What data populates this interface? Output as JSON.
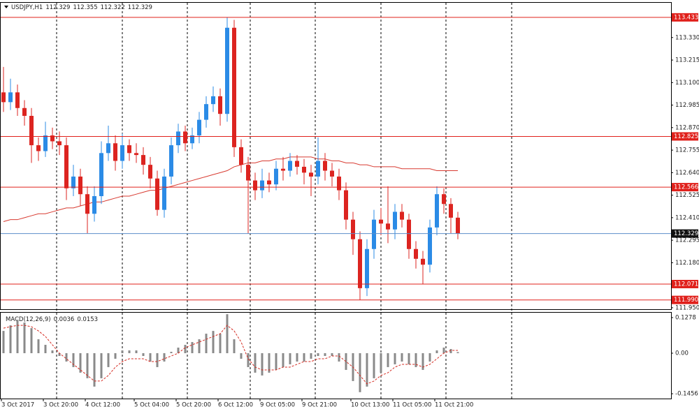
{
  "chart_data": [
    {
      "type": "candlestick",
      "title": "USDJPY,H1",
      "header_values": [
        112.329,
        112.355,
        112.322,
        112.329
      ],
      "categories": [
        "3 Oct 2017",
        null,
        null,
        null,
        null,
        null,
        "3 Oct 20:00",
        null,
        null,
        null,
        null,
        null,
        "4 Oct 12:00",
        null,
        null,
        null,
        null,
        null,
        null,
        "5 Oct 04:00",
        null,
        null,
        null,
        null,
        null,
        "5 Oct 20:00",
        null,
        null,
        null,
        null,
        null,
        "6 Oct 12:00",
        null,
        null,
        null,
        null,
        null,
        "9 Oct 05:00",
        null,
        null,
        null,
        null,
        null,
        "9 Oct 21:00",
        null,
        null,
        null,
        null,
        null,
        null,
        "10 Oct 13:00",
        null,
        null,
        null,
        null,
        null,
        "11 Oct 05:00",
        null,
        null,
        null,
        null,
        null,
        "11 Oct 21:00",
        null,
        null,
        null
      ],
      "open": [
        113.05,
        113.0,
        113.05,
        112.97,
        112.93,
        112.78,
        112.75,
        112.83,
        112.8,
        112.78,
        112.56,
        112.62,
        112.53,
        112.43,
        112.52,
        112.74,
        112.79,
        112.7,
        112.78,
        112.74,
        112.73,
        112.68,
        112.61,
        112.45,
        112.62,
        112.78,
        112.85,
        112.79,
        112.83,
        112.91,
        112.99,
        113.03,
        112.94,
        113.38,
        112.77,
        112.68,
        112.6,
        112.55,
        112.6,
        112.58,
        112.66,
        112.65,
        112.7,
        112.67,
        112.64,
        112.62,
        112.7,
        112.65,
        112.62,
        112.55,
        112.4,
        112.3,
        112.05,
        112.25,
        112.4,
        112.38,
        112.35,
        112.44,
        112.4,
        112.25,
        112.2,
        112.17,
        112.36,
        112.53,
        112.48,
        112.41
      ],
      "high": [
        113.18,
        113.12,
        113.09,
        113.01,
        112.97,
        112.82,
        112.9,
        112.87,
        112.85,
        112.82,
        112.68,
        112.66,
        112.57,
        112.57,
        112.8,
        112.88,
        112.83,
        112.84,
        112.81,
        112.79,
        112.77,
        112.72,
        112.65,
        112.66,
        112.82,
        112.89,
        112.88,
        112.87,
        112.95,
        113.03,
        113.08,
        113.07,
        113.433,
        113.42,
        112.81,
        112.72,
        112.64,
        112.66,
        112.64,
        112.7,
        112.72,
        112.74,
        112.73,
        112.71,
        112.68,
        112.82,
        112.74,
        112.69,
        112.66,
        112.59,
        112.44,
        112.34,
        112.3,
        112.45,
        112.46,
        112.57,
        112.48,
        112.48,
        112.43,
        112.29,
        112.24,
        112.4,
        112.57,
        112.56,
        112.51,
        112.44
      ],
      "low": [
        112.95,
        112.96,
        112.93,
        112.88,
        112.69,
        112.7,
        112.72,
        112.76,
        112.73,
        112.5,
        112.52,
        112.47,
        112.33,
        112.39,
        112.48,
        112.7,
        112.65,
        112.66,
        112.7,
        112.69,
        112.63,
        112.56,
        112.42,
        112.41,
        112.58,
        112.74,
        112.75,
        112.76,
        112.79,
        112.87,
        112.95,
        112.88,
        112.9,
        112.72,
        112.64,
        112.33,
        112.5,
        112.51,
        112.54,
        112.55,
        112.6,
        112.62,
        112.63,
        112.58,
        112.52,
        112.58,
        112.6,
        112.57,
        112.5,
        112.35,
        112.22,
        111.99,
        112.01,
        112.2,
        112.32,
        112.28,
        112.3,
        112.36,
        112.2,
        112.15,
        112.07,
        112.13,
        112.32,
        112.43,
        112.33,
        112.3
      ],
      "close": [
        113.0,
        113.05,
        112.97,
        112.93,
        112.78,
        112.75,
        112.83,
        112.8,
        112.78,
        112.56,
        112.62,
        112.53,
        112.43,
        112.52,
        112.74,
        112.79,
        112.7,
        112.78,
        112.74,
        112.73,
        112.68,
        112.61,
        112.45,
        112.62,
        112.78,
        112.85,
        112.79,
        112.83,
        112.91,
        112.99,
        113.03,
        112.94,
        113.38,
        112.77,
        112.68,
        112.6,
        112.55,
        112.6,
        112.58,
        112.66,
        112.65,
        112.7,
        112.67,
        112.64,
        112.62,
        112.7,
        112.65,
        112.62,
        112.55,
        112.4,
        112.3,
        112.05,
        112.25,
        112.4,
        112.38,
        112.35,
        112.44,
        112.4,
        112.25,
        112.2,
        112.17,
        112.36,
        112.53,
        112.48,
        112.41,
        112.33
      ],
      "up_color": "#2b8be6",
      "down_color": "#dc2420",
      "ma_values": [
        112.39,
        112.4,
        112.4,
        112.41,
        112.42,
        112.43,
        112.43,
        112.44,
        112.45,
        112.46,
        112.46,
        112.47,
        112.48,
        112.49,
        112.49,
        112.5,
        112.51,
        112.52,
        112.52,
        112.53,
        112.54,
        112.55,
        112.55,
        112.56,
        112.57,
        112.58,
        112.59,
        112.6,
        112.61,
        112.62,
        112.63,
        112.64,
        112.65,
        112.67,
        112.68,
        112.69,
        112.69,
        112.7,
        112.7,
        112.71,
        112.71,
        112.72,
        112.72,
        112.72,
        112.72,
        112.71,
        112.71,
        112.7,
        112.7,
        112.69,
        112.69,
        112.68,
        112.68,
        112.67,
        112.67,
        112.67,
        112.67,
        112.66,
        112.66,
        112.66,
        112.66,
        112.66,
        112.65,
        112.65,
        112.65,
        112.65
      ],
      "ma_color": "#d83a30",
      "levels": [
        113.433,
        112.825,
        112.566,
        112.071,
        {
          "value": 111.99,
          "label": "111.990"
        }
      ],
      "level_color": "#e0201b",
      "current_price": 112.329,
      "current_color": "#5b8ec9",
      "ylim": [
        111.939,
        113.511
      ],
      "yticks": [
        {
          "value": 113.33,
          "label": "113.330"
        },
        113.215,
        {
          "value": 113.1,
          "label": "113.100"
        },
        112.985,
        {
          "value": 112.87,
          "label": "112.870"
        },
        112.755,
        {
          "value": 112.64,
          "label": "112.640"
        },
        112.525,
        {
          "value": 112.41,
          "label": "112.410"
        },
        112.295,
        {
          "value": 112.18,
          "label": "112.180"
        },
        {
          "value": 111.95,
          "label": "111.950"
        }
      ]
    },
    {
      "type": "macd",
      "title": "MACD(12,26,9)",
      "header_values": [
        0.0036,
        0.0153
      ],
      "histogram": [
        0.08,
        0.1,
        0.12,
        0.11,
        0.09,
        0.05,
        0.03,
        0.01,
        -0.01,
        -0.03,
        -0.05,
        -0.07,
        -0.09,
        -0.12,
        -0.09,
        -0.05,
        -0.02,
        0.01,
        0.01,
        0.01,
        -0.01,
        -0.03,
        -0.05,
        -0.03,
        0.005,
        0.02,
        0.03,
        0.04,
        0.05,
        0.07,
        0.08,
        0.07,
        0.14,
        0.05,
        -0.02,
        -0.05,
        -0.07,
        -0.08,
        -0.07,
        -0.06,
        -0.05,
        -0.04,
        -0.03,
        -0.03,
        -0.02,
        -0.01,
        -0.01,
        -0.01,
        -0.03,
        -0.06,
        -0.1,
        -0.14,
        -0.12,
        -0.09,
        -0.07,
        -0.05,
        -0.04,
        -0.03,
        -0.04,
        -0.05,
        -0.06,
        -0.03,
        0.01,
        0.02,
        0.015,
        0.004
      ],
      "histogram_color": "#8a8a8a",
      "signal": [
        0.09,
        0.095,
        0.1,
        0.1,
        0.095,
        0.08,
        0.06,
        0.03,
        0.0,
        -0.02,
        -0.04,
        -0.06,
        -0.08,
        -0.1,
        -0.1,
        -0.08,
        -0.05,
        -0.03,
        -0.02,
        -0.02,
        -0.02,
        -0.03,
        -0.03,
        -0.02,
        -0.01,
        0.0,
        0.02,
        0.03,
        0.04,
        0.05,
        0.06,
        0.07,
        0.1,
        0.08,
        0.04,
        -0.02,
        -0.05,
        -0.06,
        -0.06,
        -0.06,
        -0.05,
        -0.05,
        -0.04,
        -0.03,
        -0.03,
        -0.02,
        -0.02,
        -0.01,
        -0.01,
        -0.03,
        -0.05,
        -0.08,
        -0.11,
        -0.1,
        -0.08,
        -0.07,
        -0.05,
        -0.04,
        -0.04,
        -0.04,
        -0.05,
        -0.04,
        -0.02,
        0.0,
        0.01,
        0.01
      ],
      "signal_color": "#d52a20",
      "ylim": [
        -0.1654,
        0.1479
      ],
      "yticks": [
        0.1278,
        {
          "value": 0,
          "label": "0.00"
        },
        -0.1456
      ]
    }
  ]
}
